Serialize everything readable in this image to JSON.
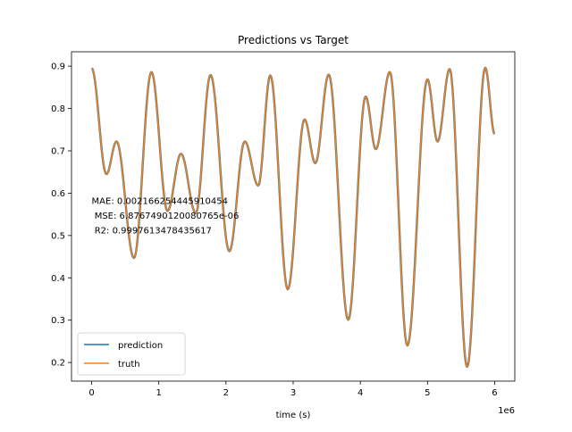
{
  "chart_data": {
    "type": "line",
    "title": "Predictions vs Target",
    "xlabel": "time (s)",
    "ylabel": "",
    "x_scale_label": "1e6",
    "xlim": [
      -0.3,
      6.3
    ],
    "ylim": [
      0.156,
      0.934
    ],
    "x_ticks": [
      {
        "value": 0,
        "label": "0"
      },
      {
        "value": 1,
        "label": "1"
      },
      {
        "value": 2,
        "label": "2"
      },
      {
        "value": 3,
        "label": "3"
      },
      {
        "value": 4,
        "label": "4"
      },
      {
        "value": 5,
        "label": "5"
      },
      {
        "value": 6,
        "label": "6"
      }
    ],
    "y_ticks": [
      {
        "value": 0.2,
        "label": "0.2"
      },
      {
        "value": 0.3,
        "label": "0.3"
      },
      {
        "value": 0.4,
        "label": "0.4"
      },
      {
        "value": 0.5,
        "label": "0.5"
      },
      {
        "value": 0.6,
        "label": "0.6"
      },
      {
        "value": 0.7,
        "label": "0.7"
      },
      {
        "value": 0.8,
        "label": "0.8"
      },
      {
        "value": 0.9,
        "label": "0.9"
      }
    ],
    "extrema": [
      [
        0.0,
        0.895
      ],
      [
        0.22,
        0.645
      ],
      [
        0.37,
        0.722
      ],
      [
        0.63,
        0.447
      ],
      [
        0.89,
        0.886
      ],
      [
        1.13,
        0.558
      ],
      [
        1.33,
        0.693
      ],
      [
        1.55,
        0.553
      ],
      [
        1.77,
        0.879
      ],
      [
        2.05,
        0.463
      ],
      [
        2.28,
        0.722
      ],
      [
        2.48,
        0.618
      ],
      [
        2.66,
        0.878
      ],
      [
        2.92,
        0.373
      ],
      [
        3.17,
        0.774
      ],
      [
        3.33,
        0.671
      ],
      [
        3.53,
        0.88
      ],
      [
        3.82,
        0.301
      ],
      [
        4.08,
        0.828
      ],
      [
        4.23,
        0.704
      ],
      [
        4.44,
        0.886
      ],
      [
        4.7,
        0.24
      ],
      [
        5.0,
        0.869
      ],
      [
        5.15,
        0.722
      ],
      [
        5.33,
        0.893
      ],
      [
        5.59,
        0.19
      ],
      [
        5.86,
        0.896
      ],
      [
        6.0,
        0.74
      ]
    ],
    "series": [
      {
        "name": "prediction",
        "color": "#1f77b4"
      },
      {
        "name": "truth",
        "color": "#ff7f0e"
      }
    ],
    "annotation_lines": [
      "MAE: 0.002166254445910454",
      " MSE: 6.8767490120080765e-06",
      " R2: 0.9997613478435617"
    ],
    "annotation_anchor": {
      "x": 0.0,
      "y": 0.575
    },
    "legend_placement": "lower-left",
    "grid": false
  }
}
